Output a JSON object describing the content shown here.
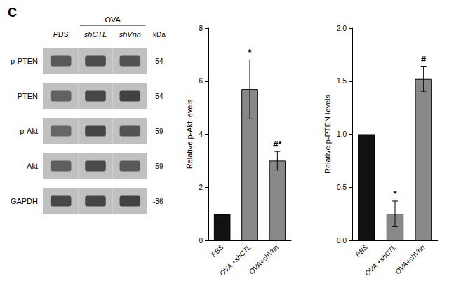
{
  "chart_data": [
    {
      "type": "blot",
      "title": "C",
      "x": [
        "PBS",
        "shCTL",
        "shVnn"
      ],
      "group_label": "OVA",
      "y": [
        "p-PTEN",
        "PTEN",
        "p-Akt",
        "Akt",
        "GAPDH"
      ],
      "row_annotations": [
        "-54",
        "-54",
        "-59",
        "-59",
        "-36"
      ],
      "units_label": "kDa",
      "values": [
        [
          0.65,
          0.7,
          0.68
        ],
        [
          0.62,
          0.72,
          0.74
        ],
        [
          0.6,
          0.73,
          0.67
        ],
        [
          0.63,
          0.71,
          0.65
        ],
        [
          0.72,
          0.73,
          0.74
        ]
      ]
    },
    {
      "type": "bar",
      "ylabel": "Relative p-Akt levels",
      "categories": [
        "PBS",
        "OVA +shCTL",
        "OVA+shVnn"
      ],
      "values": [
        1.0,
        5.7,
        3.0
      ],
      "errors": [
        0.0,
        1.1,
        0.35
      ],
      "colors": [
        "#111111",
        "#888888",
        "#888888"
      ],
      "annotations": [
        null,
        "*",
        "#*"
      ],
      "ylim": [
        0,
        8
      ],
      "yticks": [
        0,
        2,
        4,
        6,
        8
      ],
      "grid": false
    },
    {
      "type": "bar",
      "ylabel": "Relative p-PTEN levels",
      "categories": [
        "PBS",
        "OVA +shCTL",
        "OVA+shVnn"
      ],
      "values": [
        1.0,
        0.25,
        1.52
      ],
      "errors": [
        0.0,
        0.12,
        0.12
      ],
      "colors": [
        "#111111",
        "#888888",
        "#888888"
      ],
      "annotations": [
        null,
        "*",
        "#"
      ],
      "ylim": [
        0,
        2.0
      ],
      "yticks": [
        {
          "value": 0,
          "label": "0.0"
        },
        {
          "value": 0.5,
          "label": "0.5"
        },
        {
          "value": 1,
          "label": "1.0"
        },
        {
          "value": 1.5,
          "label": "1.5"
        },
        {
          "value": 2,
          "label": "2.0"
        }
      ],
      "grid": false
    }
  ]
}
